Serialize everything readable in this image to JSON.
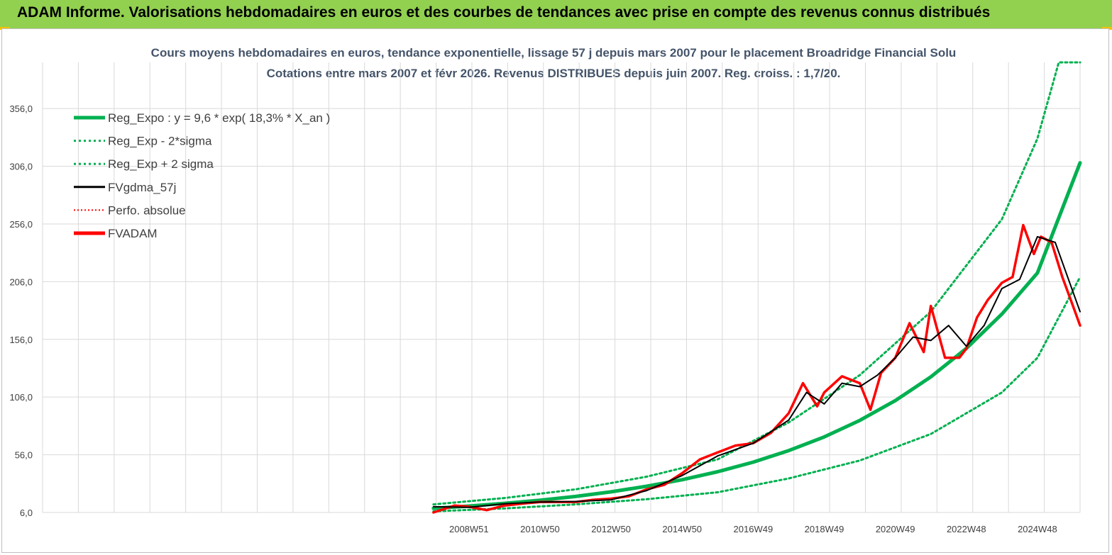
{
  "header": {
    "title": "ADAM Informe. Valorisations hebdomadaires en euros et des courbes de tendances avec prise en compte des revenus connus distribués"
  },
  "colors": {
    "banner": "#92d050",
    "reg": "#00b050",
    "fv": "#ff0000",
    "gdma": "#000000",
    "grid": "#d9d9d9"
  },
  "chart_data": {
    "type": "line",
    "title": "Cours moyens hebdomadaires en euros, tendance exponentielle, lissage 57 j depuis mars 2007 pour le placement Broadridge Financial Solu",
    "subtitle": "Cotations entre mars 2007 et févr 2026. Revenus DISTRIBUES depuis juin 2007. Reg. croiss. : 1,7/20.",
    "y_ticks": [
      "6,0",
      "56,0",
      "106,0",
      "156,0",
      "206,0",
      "256,0",
      "306,0",
      "356,0"
    ],
    "ylim": [
      6,
      396
    ],
    "x_ticks": [
      "2008W51",
      "2010W50",
      "2012W50",
      "2014W50",
      "2016W49",
      "2018W49",
      "2020W49",
      "2022W48",
      "2024W48"
    ],
    "xlim": [
      1997.0,
      2026.2
    ],
    "x_tick_positions": [
      2009.0,
      2011.0,
      2013.0,
      2015.0,
      2017.0,
      2019.0,
      2021.0,
      2023.0,
      2025.0
    ],
    "legend": [
      {
        "label": "Reg_Expo : y = 9,6 * exp( 18,3% *  X_an )",
        "style": "solid-thick",
        "color": "#00b050"
      },
      {
        "label": "Reg_Exp - 2*sigma",
        "style": "dotted",
        "color": "#00b050"
      },
      {
        "label": "Reg_Exp + 2 sigma",
        "style": "dotted",
        "color": "#00b050"
      },
      {
        "label": "FVgdma_57j",
        "style": "solid",
        "color": "#000000"
      },
      {
        "label": "Perfo. absolue",
        "style": "dotted-thin",
        "color": "#ff0000"
      },
      {
        "label": "FVADAM",
        "style": "solid-thick",
        "color": "#ff0000"
      }
    ],
    "series": [
      {
        "name": "Reg_Expo : y = 9,6 * exp( 18,3% *  X_an )",
        "x": [
          2008.0,
          2009.0,
          2010.0,
          2011.0,
          2012.0,
          2013.0,
          2014.0,
          2015.0,
          2016.0,
          2017.0,
          2018.0,
          2019.0,
          2020.0,
          2021.0,
          2022.0,
          2023.0,
          2024.0,
          2025.0,
          2026.2
        ],
        "values": [
          9.6,
          11.5,
          13.9,
          16.6,
          19.9,
          23.9,
          28.7,
          34.4,
          41.3,
          49.6,
          59.6,
          71.5,
          85.8,
          102.9,
          123.5,
          148.2,
          177.9,
          213.5,
          309.0
        ]
      },
      {
        "name": "Reg_Exp - 2*sigma",
        "x": [
          2008.0,
          2010.0,
          2012.0,
          2014.0,
          2016.0,
          2018.0,
          2020.0,
          2022.0,
          2024.0,
          2025.0,
          2026.2
        ],
        "values": [
          7.0,
          9.5,
          13.0,
          17.5,
          23.5,
          35.5,
          51.0,
          74.0,
          110.0,
          140.0,
          210.0
        ]
      },
      {
        "name": "Reg_Exp + 2 sigma",
        "x": [
          2008.0,
          2010.0,
          2012.0,
          2014.0,
          2016.0,
          2018.0,
          2020.0,
          2022.0,
          2024.0,
          2025.0,
          2025.6,
          2026.2
        ],
        "values": [
          13.0,
          18.5,
          26.0,
          37.0,
          52.0,
          84.0,
          125.0,
          180.0,
          260.0,
          330.0,
          396.0,
          396.0
        ]
      },
      {
        "name": "FVgdma_57j",
        "x": [
          2008.0,
          2009.0,
          2010.0,
          2011.0,
          2012.0,
          2013.0,
          2014.0,
          2015.0,
          2016.0,
          2017.0,
          2018.0,
          2018.5,
          2019.0,
          2019.5,
          2020.0,
          2020.5,
          2021.0,
          2021.5,
          2022.0,
          2022.5,
          2023.0,
          2023.5,
          2024.0,
          2024.5,
          2025.0,
          2025.5,
          2026.2
        ],
        "values": [
          11.0,
          10.5,
          13.5,
          15.0,
          15.5,
          17.0,
          25.0,
          38.0,
          55.0,
          66.0,
          86.0,
          110.0,
          100.0,
          118.0,
          115.0,
          125.0,
          140.0,
          158.0,
          155.0,
          168.0,
          150.0,
          168.0,
          200.0,
          208.0,
          245.0,
          240.0,
          180.0
        ]
      },
      {
        "name": "FVADAM",
        "x": [
          2008.0,
          2008.6,
          2009.0,
          2009.5,
          2010.0,
          2010.6,
          2011.0,
          2011.5,
          2012.0,
          2012.5,
          2013.0,
          2013.5,
          2014.0,
          2014.5,
          2015.0,
          2015.5,
          2016.0,
          2016.5,
          2017.0,
          2017.5,
          2018.0,
          2018.4,
          2018.8,
          2019.0,
          2019.5,
          2020.0,
          2020.3,
          2020.6,
          2021.0,
          2021.4,
          2021.8,
          2022.0,
          2022.4,
          2022.8,
          2023.0,
          2023.3,
          2023.6,
          2024.0,
          2024.3,
          2024.6,
          2024.9,
          2025.1,
          2025.4,
          2025.7,
          2026.0,
          2026.2
        ],
        "values": [
          6.0,
          12.0,
          11.0,
          8.0,
          12.0,
          14.0,
          15.0,
          15.0,
          15.0,
          17.0,
          18.0,
          20.0,
          26.0,
          30.0,
          40.0,
          52.0,
          58.0,
          64.0,
          66.0,
          75.0,
          92.0,
          118.0,
          98.0,
          110.0,
          124.0,
          118.0,
          95.0,
          127.0,
          140.0,
          170.0,
          145.0,
          185.0,
          140.0,
          140.0,
          148.0,
          175.0,
          190.0,
          205.0,
          210.0,
          255.0,
          230.0,
          245.0,
          240.0,
          210.0,
          185.0,
          168.0
        ]
      }
    ]
  }
}
